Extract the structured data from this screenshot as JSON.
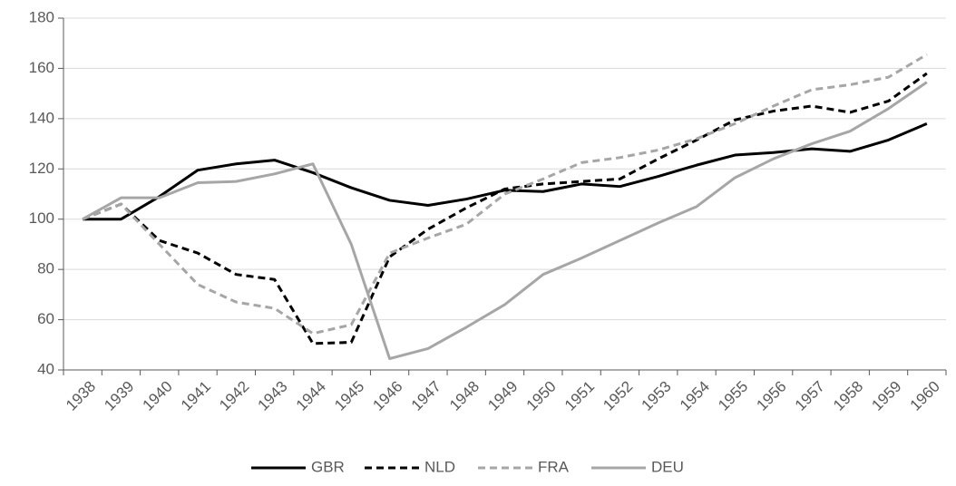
{
  "chart_data": {
    "type": "line",
    "categories": [
      "1938",
      "1939",
      "1940",
      "1941",
      "1942",
      "1943",
      "1944",
      "1945",
      "1946",
      "1947",
      "1948",
      "1949",
      "1950",
      "1951",
      "1952",
      "1953",
      "1954",
      "1955",
      "1956",
      "1957",
      "1958",
      "1959",
      "1960"
    ],
    "series": [
      {
        "name": "GBR",
        "color": "#000000",
        "dashed": false,
        "values": [
          100,
          100,
          109,
          119.5,
          122,
          123.5,
          118.5,
          112.5,
          107.5,
          105.5,
          108,
          111.5,
          111,
          114,
          113,
          117,
          121.5,
          125.5,
          126.5,
          128,
          127,
          131.5,
          138
        ]
      },
      {
        "name": "NLD",
        "color": "#000000",
        "dashed": true,
        "values": [
          100,
          106,
          91.5,
          86.5,
          78,
          76,
          50.5,
          51,
          85,
          96,
          104.5,
          112,
          114,
          115,
          116,
          124,
          131.5,
          139.5,
          143,
          145,
          142.5,
          147,
          158
        ]
      },
      {
        "name": "FRA",
        "color": "#a6a6a6",
        "dashed": true,
        "values": [
          100,
          106,
          90,
          74,
          67,
          64.5,
          54.5,
          58,
          86.5,
          92.5,
          98,
          110,
          116,
          122.5,
          124.5,
          127.5,
          132,
          138,
          145,
          151.5,
          153.5,
          156.5,
          165.5
        ]
      },
      {
        "name": "DEU",
        "color": "#a6a6a6",
        "dashed": false,
        "values": [
          100,
          108.5,
          108.5,
          114.5,
          115,
          118,
          122,
          90,
          44.5,
          48.5,
          57,
          66,
          78,
          84.5,
          91.5,
          98.5,
          105,
          116.5,
          124,
          130,
          135,
          144,
          154.5
        ]
      }
    ],
    "ylim": [
      40,
      180
    ],
    "yticks": [
      40,
      60,
      80,
      100,
      120,
      140,
      160,
      180
    ],
    "grid": true,
    "legend": "bottom"
  }
}
